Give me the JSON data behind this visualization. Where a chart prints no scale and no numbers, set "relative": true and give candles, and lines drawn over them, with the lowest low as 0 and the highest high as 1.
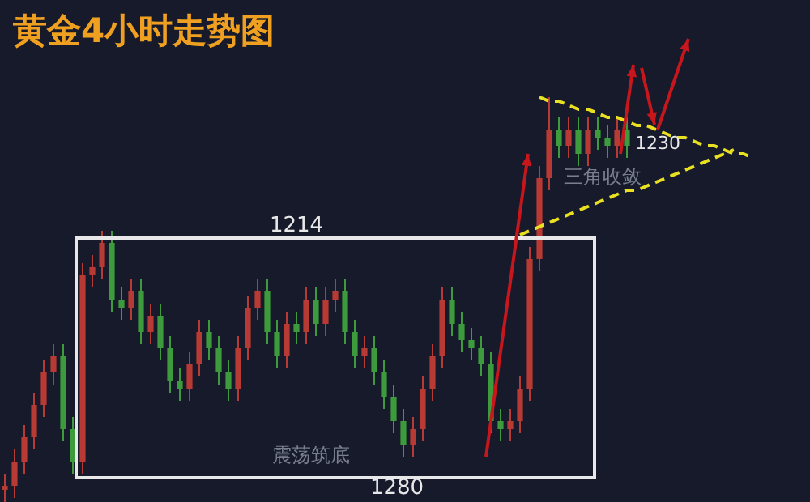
{
  "chart_data": {
    "type": "candlestick",
    "title": "黄金4小时走势图",
    "relative": true,
    "categories": [
      null,
      null,
      null,
      null,
      null,
      null,
      null,
      null,
      null,
      null,
      null,
      null,
      null,
      null,
      null,
      null,
      null,
      null,
      null,
      null,
      null,
      null,
      null,
      null,
      null,
      null,
      null,
      null,
      null,
      null,
      null,
      null,
      null,
      null,
      null,
      null,
      null,
      null,
      null,
      null,
      null,
      null,
      null,
      null,
      null,
      null,
      null,
      null,
      null,
      null,
      null,
      null,
      null,
      null,
      null,
      null,
      null,
      null,
      null,
      null,
      null,
      null,
      null,
      null,
      null,
      null,
      null,
      null,
      null,
      null,
      null,
      null,
      null,
      null,
      null,
      null,
      null,
      null
    ],
    "ohlc": [
      [
        0.03,
        0.07,
        0.0,
        0.04
      ],
      [
        0.04,
        0.13,
        0.01,
        0.1
      ],
      [
        0.1,
        0.19,
        0.07,
        0.16
      ],
      [
        0.16,
        0.27,
        0.13,
        0.24
      ],
      [
        0.24,
        0.35,
        0.21,
        0.32
      ],
      [
        0.32,
        0.39,
        0.29,
        0.36
      ],
      [
        0.36,
        0.39,
        0.15,
        0.18
      ],
      [
        0.18,
        0.21,
        0.07,
        0.1
      ],
      [
        0.1,
        0.59,
        0.07,
        0.56
      ],
      [
        0.56,
        0.61,
        0.53,
        0.58
      ],
      [
        0.58,
        0.67,
        0.55,
        0.64
      ],
      [
        0.64,
        0.67,
        0.47,
        0.5
      ],
      [
        0.5,
        0.53,
        0.45,
        0.48
      ],
      [
        0.48,
        0.55,
        0.45,
        0.52
      ],
      [
        0.52,
        0.55,
        0.39,
        0.42
      ],
      [
        0.42,
        0.49,
        0.39,
        0.46
      ],
      [
        0.46,
        0.49,
        0.35,
        0.38
      ],
      [
        0.38,
        0.41,
        0.27,
        0.3
      ],
      [
        0.3,
        0.33,
        0.25,
        0.28
      ],
      [
        0.28,
        0.37,
        0.25,
        0.34
      ],
      [
        0.34,
        0.45,
        0.31,
        0.42
      ],
      [
        0.42,
        0.45,
        0.35,
        0.38
      ],
      [
        0.38,
        0.41,
        0.29,
        0.32
      ],
      [
        0.32,
        0.35,
        0.25,
        0.28
      ],
      [
        0.28,
        0.41,
        0.25,
        0.38
      ],
      [
        0.38,
        0.51,
        0.35,
        0.48
      ],
      [
        0.48,
        0.55,
        0.45,
        0.52
      ],
      [
        0.52,
        0.55,
        0.39,
        0.42
      ],
      [
        0.42,
        0.45,
        0.33,
        0.36
      ],
      [
        0.36,
        0.47,
        0.33,
        0.44
      ],
      [
        0.44,
        0.47,
        0.39,
        0.42
      ],
      [
        0.42,
        0.53,
        0.39,
        0.5
      ],
      [
        0.5,
        0.53,
        0.41,
        0.44
      ],
      [
        0.44,
        0.53,
        0.41,
        0.5
      ],
      [
        0.5,
        0.55,
        0.47,
        0.52
      ],
      [
        0.52,
        0.55,
        0.39,
        0.42
      ],
      [
        0.42,
        0.45,
        0.33,
        0.36
      ],
      [
        0.36,
        0.41,
        0.33,
        0.38
      ],
      [
        0.38,
        0.41,
        0.29,
        0.32
      ],
      [
        0.32,
        0.35,
        0.23,
        0.26
      ],
      [
        0.26,
        0.29,
        0.17,
        0.2
      ],
      [
        0.2,
        0.23,
        0.11,
        0.14
      ],
      [
        0.14,
        0.21,
        0.11,
        0.18
      ],
      [
        0.18,
        0.31,
        0.15,
        0.28
      ],
      [
        0.28,
        0.39,
        0.25,
        0.36
      ],
      [
        0.36,
        0.53,
        0.33,
        0.5
      ],
      [
        0.5,
        0.53,
        0.41,
        0.44
      ],
      [
        0.44,
        0.47,
        0.37,
        0.4
      ],
      [
        0.4,
        0.43,
        0.35,
        0.38
      ],
      [
        0.38,
        0.41,
        0.31,
        0.34
      ],
      [
        0.34,
        0.37,
        0.17,
        0.2
      ],
      [
        0.2,
        0.23,
        0.15,
        0.18
      ],
      [
        0.18,
        0.23,
        0.15,
        0.2
      ],
      [
        0.2,
        0.31,
        0.17,
        0.28
      ],
      [
        0.28,
        0.63,
        0.25,
        0.6
      ],
      [
        0.6,
        0.83,
        0.57,
        0.8
      ],
      [
        0.8,
        1.0,
        0.77,
        0.92
      ],
      [
        0.92,
        0.95,
        0.85,
        0.88
      ],
      [
        0.88,
        0.95,
        0.85,
        0.92
      ],
      [
        0.92,
        0.95,
        0.83,
        0.86
      ],
      [
        0.86,
        0.95,
        0.83,
        0.92
      ],
      [
        0.92,
        0.95,
        0.87,
        0.9
      ],
      [
        0.9,
        0.93,
        0.85,
        0.88
      ],
      [
        0.88,
        0.95,
        0.85,
        0.92
      ],
      [
        0.92,
        0.95,
        0.85,
        0.88
      ],
      null,
      null,
      null,
      null,
      null,
      null,
      null,
      null,
      null,
      null,
      null,
      null,
      null
    ],
    "series": [
      {
        "type": "line",
        "color": "#e8e020",
        "line_style": "dashed",
        "values": [
          null,
          null,
          null,
          null,
          null,
          null,
          null,
          null,
          null,
          null,
          null,
          null,
          null,
          null,
          null,
          null,
          null,
          null,
          null,
          null,
          null,
          null,
          null,
          null,
          null,
          null,
          null,
          null,
          null,
          null,
          null,
          null,
          null,
          null,
          null,
          null,
          null,
          null,
          null,
          null,
          null,
          null,
          null,
          null,
          null,
          null,
          null,
          null,
          null,
          null,
          null,
          null,
          null,
          null,
          null,
          1.0,
          0.99,
          0.99,
          0.98,
          0.97,
          0.97,
          0.96,
          0.95,
          0.95,
          0.94,
          0.93,
          0.93,
          0.92,
          0.91,
          0.9,
          0.9,
          0.89,
          0.88,
          0.88,
          0.87,
          0.86,
          0.86,
          0.85
        ]
      },
      {
        "type": "line",
        "color": "#e8e020",
        "line_style": "dashed",
        "values": [
          null,
          null,
          null,
          null,
          null,
          null,
          null,
          null,
          null,
          null,
          null,
          null,
          null,
          null,
          null,
          null,
          null,
          null,
          null,
          null,
          null,
          null,
          null,
          null,
          null,
          null,
          null,
          null,
          null,
          null,
          null,
          null,
          null,
          null,
          null,
          null,
          null,
          null,
          null,
          null,
          null,
          null,
          null,
          null,
          null,
          null,
          null,
          null,
          null,
          null,
          null,
          null,
          null,
          0.66,
          0.67,
          0.68,
          0.69,
          0.7,
          0.71,
          0.72,
          0.73,
          0.74,
          0.75,
          0.76,
          0.77,
          0.77,
          0.78,
          0.79,
          0.8,
          0.81,
          0.82,
          0.83,
          0.84,
          0.85,
          0.86,
          0.87,
          null,
          null
        ]
      }
    ],
    "annotations": [
      "1214",
      "1280",
      "1230",
      "三角收敛",
      "震荡筑底"
    ]
  }
}
